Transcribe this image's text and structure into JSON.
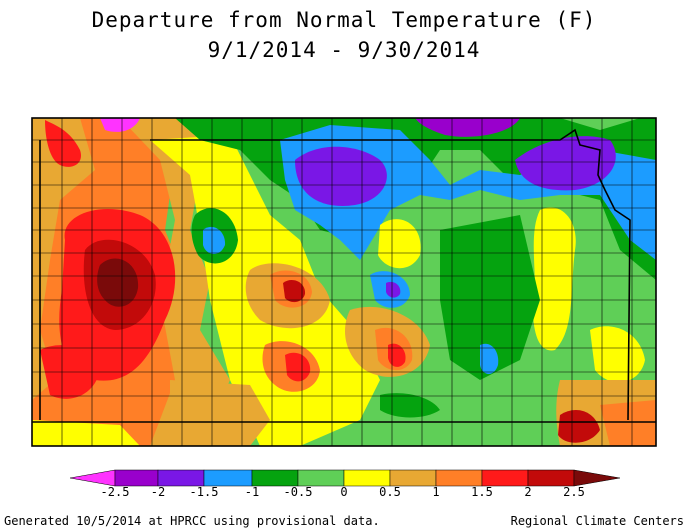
{
  "map": {
    "title": "Departure from Normal Temperature (F)",
    "date_range": "9/1/2014 - 9/30/2014",
    "region_labels": [],
    "legend": {
      "ticks": [
        "-2.5",
        "-2",
        "-1.5",
        "-1",
        "-0.5",
        "0",
        "0.5",
        "1",
        "1.5",
        "2",
        "2.5"
      ],
      "colors": [
        "#ff33ff",
        "#9900cc",
        "#7a17e6",
        "#1c9cff",
        "#05a30f",
        "#5fcf57",
        "#ffff00",
        "#e8a833",
        "#ff7f27",
        "#ff1a1a",
        "#c20a0a",
        "#7a0a0a"
      ]
    },
    "footer_left": "Generated 10/5/2014 at HPRCC using provisional data.",
    "footer_right": "Regional Climate Centers"
  }
}
